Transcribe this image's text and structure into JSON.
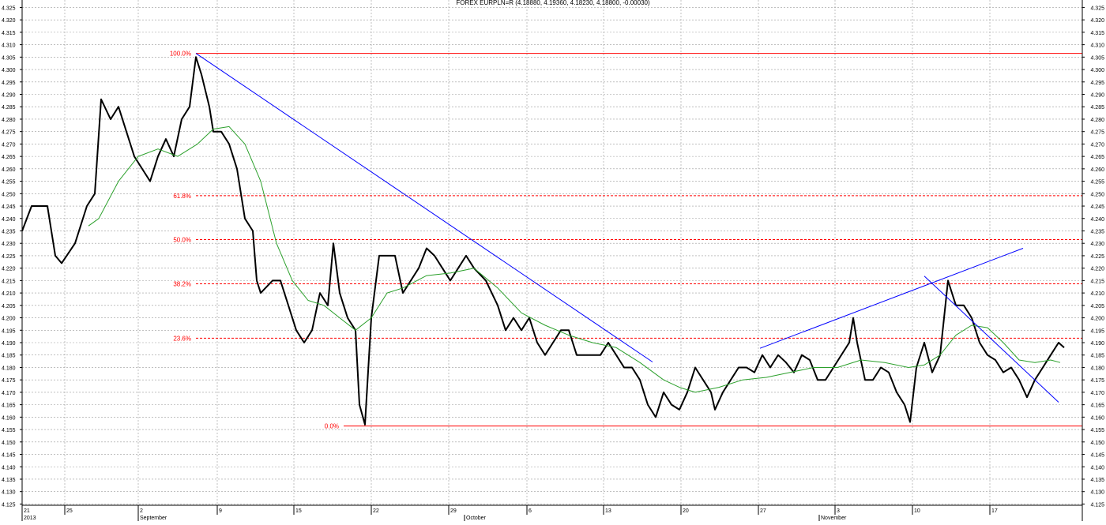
{
  "chart_data": {
    "type": "line",
    "title": "FOREX EURPLN=R (4.18880, 4.19360, 4.18230, 4.18800, -0.00030)",
    "xlim": [
      0,
      134.2
    ],
    "ylim": [
      4.1245,
      4.328
    ],
    "grid": true,
    "xticks": [
      {
        "value": 0,
        "label": "21"
      },
      {
        "value": 5.4,
        "label": "25"
      },
      {
        "value": 14.7,
        "label": "2"
      },
      {
        "value": 24.7,
        "label": "9"
      },
      {
        "value": 34.4,
        "label": "15"
      },
      {
        "value": 44.2,
        "label": "22"
      },
      {
        "value": 54,
        "label": "29"
      },
      {
        "value": 63.9,
        "label": "6"
      },
      {
        "value": 73.6,
        "label": "13"
      },
      {
        "value": 83.4,
        "label": "20"
      },
      {
        "value": 93.2,
        "label": "27"
      },
      {
        "value": 102.9,
        "label": "3"
      },
      {
        "value": 112.7,
        "label": "10"
      },
      {
        "value": 122.5,
        "label": "17"
      }
    ],
    "month_labels": [
      {
        "value": 0,
        "label": "2013"
      },
      {
        "value": 14.7,
        "label": "September"
      },
      {
        "value": 56,
        "label": "October"
      },
      {
        "value": 100.9,
        "label": "November"
      }
    ],
    "yticks": [
      4.125,
      {
        "value": 4.13,
        "label": "4.130"
      },
      4.135,
      {
        "value": 4.14,
        "label": "4.140"
      },
      4.145,
      {
        "value": 4.15,
        "label": "4.150"
      },
      4.155,
      {
        "value": 4.16,
        "label": "4.160"
      },
      4.165,
      {
        "value": 4.17,
        "label": "4.170"
      },
      4.175,
      {
        "value": 4.18,
        "label": "4.180"
      },
      4.185,
      {
        "value": 4.19,
        "label": "4.190"
      },
      4.195,
      {
        "value": 4.2,
        "label": "4.200"
      },
      4.205,
      {
        "value": 4.21,
        "label": "4.210"
      },
      4.215,
      {
        "value": 4.22,
        "label": "4.220"
      },
      4.225,
      {
        "value": 4.23,
        "label": "4.230"
      },
      4.235,
      {
        "value": 4.24,
        "label": "4.240"
      },
      4.245,
      {
        "value": 4.25,
        "label": "4.250"
      },
      4.255,
      {
        "value": 4.26,
        "label": "4.260"
      },
      4.265,
      {
        "value": 4.27,
        "label": "4.270"
      },
      4.275,
      {
        "value": 4.28,
        "label": "4.280"
      },
      4.285,
      {
        "value": 4.29,
        "label": "4.290"
      },
      4.295,
      {
        "value": 4.3,
        "label": "4.300"
      },
      4.305,
      {
        "value": 4.31,
        "label": "4.310"
      },
      4.315,
      {
        "value": 4.32,
        "label": "4.320"
      },
      4.325
    ],
    "series": [
      {
        "color": "#000000",
        "width": 2,
        "x": [
          0,
          1.2,
          3.2,
          4.2,
          5,
          6.7,
          8.2,
          9.2,
          10,
          11.2,
          12.2,
          13.2,
          14.2,
          15.2,
          16.2,
          17.2,
          18.2,
          19.2,
          20.2,
          21.2,
          22,
          22.7,
          23.7,
          24.2,
          25.2,
          26.2,
          27.2,
          28.2,
          29.2,
          29.7,
          30.2,
          31.7,
          32.7,
          33.7,
          34.7,
          35.7,
          36.7,
          37.7,
          38.7,
          39.4,
          40.2,
          41.2,
          42.2,
          42.7,
          43.4,
          44.2,
          45.2,
          46.2,
          47.2,
          48.2,
          49.2,
          50.2,
          51.2,
          52.2,
          53.2,
          54.2,
          55.2,
          56.2,
          57.2,
          58.7,
          60.2,
          61.2,
          62.2,
          63.2,
          64.2,
          65.2,
          66.2,
          67.2,
          68.2,
          69.2,
          70.2,
          71.2,
          72.2,
          73.2,
          74.2,
          75.2,
          76.2,
          77.2,
          78.2,
          79.2,
          80.2,
          81.2,
          82.2,
          83.2,
          84.2,
          85.2,
          86.2,
          87.2,
          87.7,
          88.7,
          89.7,
          90.7,
          91.7,
          92.7,
          93.7,
          94.7,
          95.7,
          96.7,
          97.7,
          98.7,
          99.7,
          100.7,
          101.7,
          102.7,
          103.7,
          104.7,
          105.2,
          105.7,
          106.7,
          107.7,
          108.7,
          109.7,
          110.7,
          111.7,
          112.4,
          113.2,
          114.2,
          115.2,
          116.2,
          116.7,
          117.2,
          118.2,
          119.2,
          120.2,
          121.2,
          122.2,
          123.2,
          124.2,
          125.2,
          126.2,
          127.2,
          128.2,
          129.2,
          130.2,
          131.2,
          131.9
        ],
        "values": [
          4.235,
          4.245,
          4.245,
          4.225,
          4.222,
          4.23,
          4.245,
          4.25,
          4.288,
          4.28,
          4.285,
          4.275,
          4.265,
          4.26,
          4.255,
          4.265,
          4.272,
          4.265,
          4.28,
          4.285,
          4.305,
          4.298,
          4.285,
          4.275,
          4.275,
          4.27,
          4.26,
          4.24,
          4.235,
          4.215,
          4.21,
          4.215,
          4.215,
          4.205,
          4.195,
          4.19,
          4.195,
          4.21,
          4.205,
          4.23,
          4.21,
          4.2,
          4.195,
          4.165,
          4.157,
          4.2,
          4.225,
          4.225,
          4.225,
          4.21,
          4.215,
          4.22,
          4.228,
          4.225,
          4.22,
          4.215,
          4.22,
          4.225,
          4.22,
          4.215,
          4.205,
          4.195,
          4.2,
          4.195,
          4.2,
          4.19,
          4.185,
          4.19,
          4.195,
          4.195,
          4.185,
          4.185,
          4.185,
          4.185,
          4.19,
          4.185,
          4.18,
          4.18,
          4.175,
          4.165,
          4.16,
          4.17,
          4.165,
          4.163,
          4.17,
          4.18,
          4.175,
          4.17,
          4.163,
          4.17,
          4.175,
          4.18,
          4.18,
          4.178,
          4.185,
          4.18,
          4.185,
          4.182,
          4.178,
          4.185,
          4.183,
          4.175,
          4.175,
          4.18,
          4.185,
          4.19,
          4.2,
          4.19,
          4.175,
          4.175,
          4.18,
          4.178,
          4.17,
          4.165,
          4.158,
          4.18,
          4.19,
          4.178,
          4.185,
          4.2,
          4.215,
          4.205,
          4.205,
          4.2,
          4.19,
          4.185,
          4.183,
          4.178,
          4.18,
          4.175,
          4.168,
          4.175,
          4.18,
          4.185,
          4.19,
          4.188
        ]
      },
      {
        "color": "#2ca02c",
        "width": 1,
        "x": [
          8.4,
          9.7,
          12.2,
          14.7,
          17.2,
          19.7,
          22.2,
          24.2,
          26.2,
          28.2,
          30.2,
          32.2,
          34.2,
          36.2,
          38.2,
          40.2,
          42.2,
          44.2,
          46.2,
          48.2,
          51.2,
          54.2,
          57.2,
          60.2,
          63.2,
          66.2,
          69.2,
          72.2,
          75.2,
          78.2,
          81.2,
          83.2,
          85.2,
          88.2,
          91.2,
          94.2,
          97.2,
          100.2,
          103.2,
          106.2,
          109.2,
          112.2,
          114.2,
          116.2,
          118.2,
          120.2,
          122.2,
          124.2,
          126.2,
          128.2,
          130.2,
          131.4
        ],
        "values": [
          4.237,
          4.24,
          4.255,
          4.265,
          4.268,
          4.265,
          4.27,
          4.276,
          4.277,
          4.27,
          4.255,
          4.23,
          4.215,
          4.207,
          4.205,
          4.2,
          4.195,
          4.2,
          4.21,
          4.212,
          4.217,
          4.218,
          4.22,
          4.212,
          4.202,
          4.197,
          4.193,
          4.19,
          4.188,
          4.182,
          4.175,
          4.172,
          4.17,
          4.172,
          4.175,
          4.176,
          4.178,
          4.18,
          4.18,
          4.183,
          4.182,
          4.18,
          4.181,
          4.185,
          4.193,
          4.197,
          4.196,
          4.19,
          4.183,
          4.182,
          4.183,
          4.182
        ]
      }
    ],
    "fib_color": "#ff0000",
    "fib_levels": [
      {
        "label": "100.0%",
        "value": 4.3065,
        "x_start": 22,
        "dashed": false
      },
      {
        "label": "61.8%",
        "value": 4.2492,
        "x_start": 22,
        "dashed": true
      },
      {
        "label": "50.0%",
        "value": 4.2315,
        "x_start": 22,
        "dashed": true
      },
      {
        "label": "38.2%",
        "value": 4.2137,
        "x_start": 22,
        "dashed": true
      },
      {
        "label": "23.6%",
        "value": 4.1918,
        "x_start": 22,
        "dashed": true
      },
      {
        "label": "0.0%",
        "value": 4.1564,
        "x_start": 40.7,
        "dashed": false
      }
    ],
    "trend_color": "#0000ff",
    "trend_lines": [
      {
        "x": [
          22,
          79.8
        ],
        "values": [
          4.3065,
          4.1822
        ]
      },
      {
        "x": [
          93.4,
          126.7
        ],
        "values": [
          4.1877,
          4.228
        ]
      },
      {
        "x": [
          114.2,
          131.2
        ],
        "values": [
          4.2168,
          4.166
        ]
      }
    ]
  }
}
